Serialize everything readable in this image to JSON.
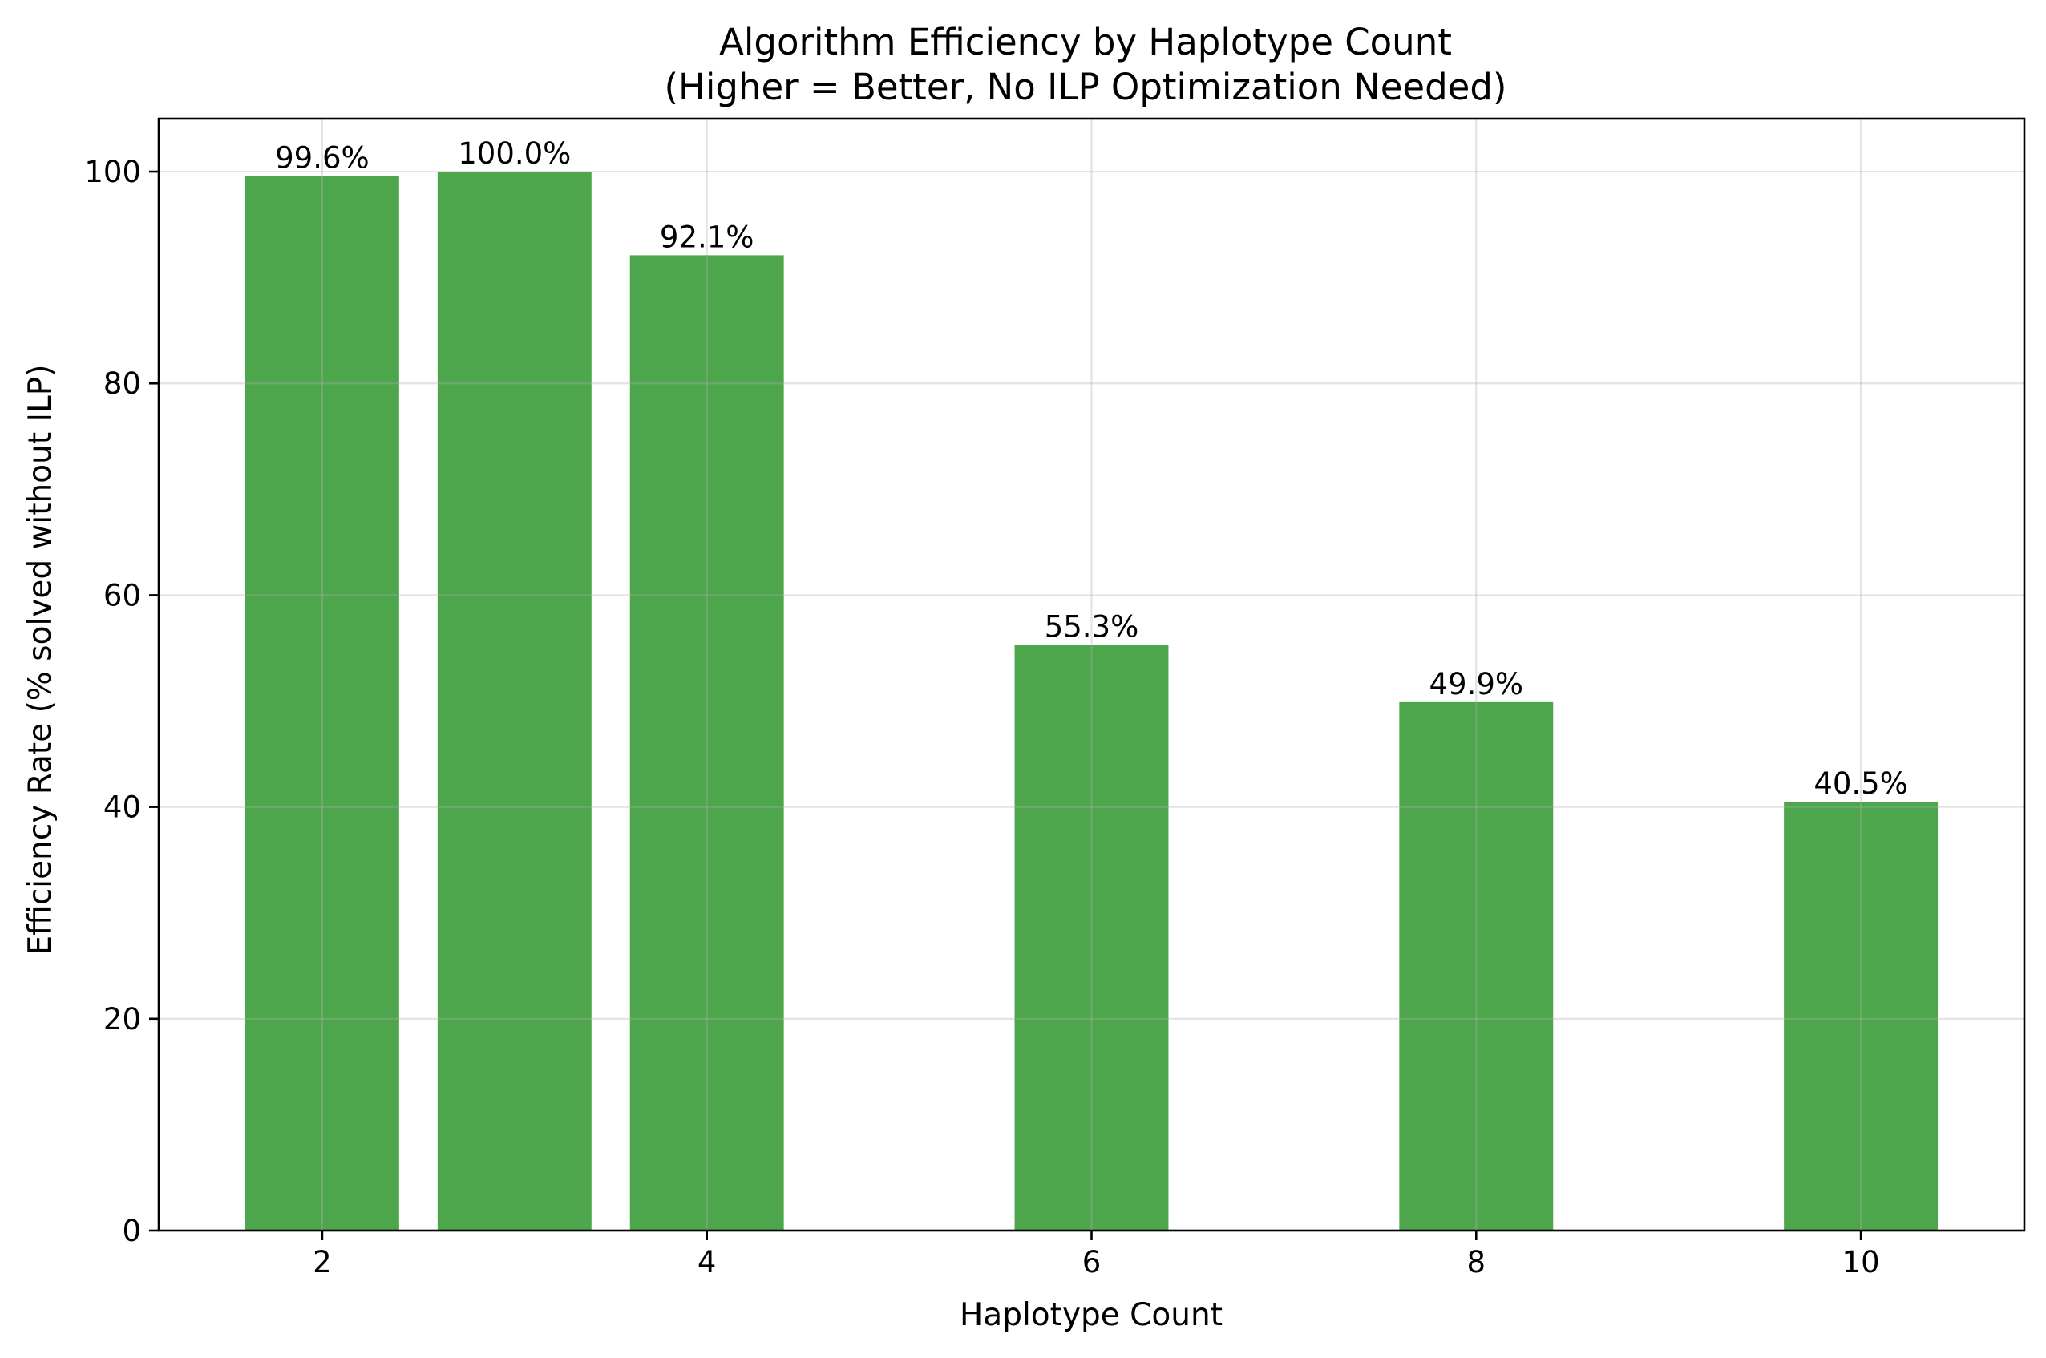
{
  "chart_data": {
    "type": "bar",
    "title": "Algorithm Efficiency by Haplotype Count",
    "subtitle": "(Higher = Better, No ILP Optimization Needed)",
    "xlabel": "Haplotype Count",
    "ylabel": "Efficiency Rate (% solved without ILP)",
    "x": [
      2,
      3,
      4,
      6,
      8,
      10
    ],
    "values": [
      99.6,
      100.0,
      92.1,
      55.3,
      49.9,
      40.5
    ],
    "data_labels": [
      "99.6%",
      "100.0%",
      "92.1%",
      "55.3%",
      "49.9%",
      "40.5%"
    ],
    "x_ticks": [
      2,
      4,
      6,
      8,
      10
    ],
    "x_tick_labels": [
      "2",
      "4",
      "6",
      "8",
      "10"
    ],
    "y_ticks": [
      0,
      20,
      40,
      60,
      80,
      100
    ],
    "y_tick_labels": [
      "0",
      "20",
      "40",
      "60",
      "80",
      "100"
    ],
    "xlim": [
      1.15,
      10.85
    ],
    "ylim": [
      0,
      105
    ],
    "bar_width": 0.8,
    "bar_color": "#4ea64c",
    "grid": true,
    "legend": false
  }
}
